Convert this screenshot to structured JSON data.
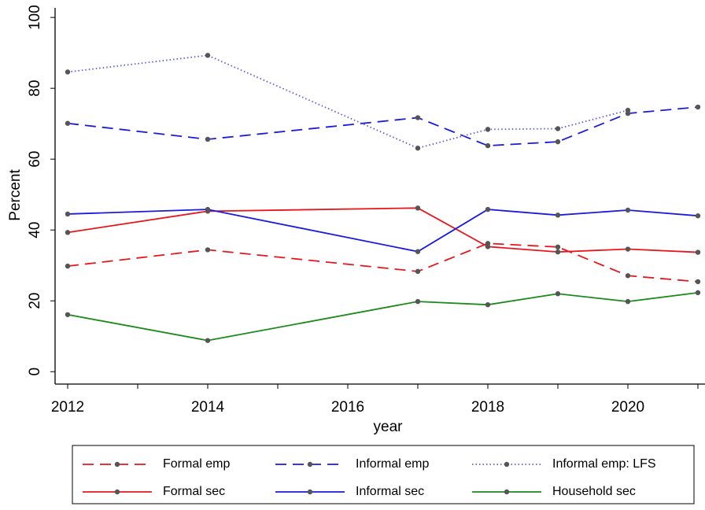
{
  "chart_data": {
    "type": "line",
    "x_label": "year",
    "y_label": "Percent",
    "x": [
      2012,
      2014,
      2017,
      2018,
      2019,
      2020,
      2021
    ],
    "series": [
      {
        "name": "Formal emp",
        "color": "#e8161b",
        "style": "dashed",
        "values": [
          29.8,
          34.4,
          28.3,
          36.2,
          35.2,
          27.1,
          25.4
        ]
      },
      {
        "name": "Informal emp",
        "color": "#1a1ae0",
        "style": "dashed",
        "values": [
          70.1,
          65.6,
          71.7,
          63.8,
          64.9,
          72.9,
          74.7
        ]
      },
      {
        "name": "Informal emp: LFS",
        "color": "#5a5ae6",
        "style": "dotted",
        "values": [
          84.6,
          89.3,
          63.1,
          68.4,
          68.6,
          73.8,
          null
        ]
      },
      {
        "name": "Formal sec",
        "color": "#e8161b",
        "style": "solid",
        "values": [
          39.3,
          45.3,
          46.2,
          35.3,
          33.8,
          34.6,
          33.7
        ]
      },
      {
        "name": "Informal sec",
        "color": "#1a1ae0",
        "style": "solid",
        "values": [
          44.5,
          45.8,
          33.9,
          45.8,
          44.2,
          45.6,
          44.0
        ]
      },
      {
        "name": "Household sec",
        "color": "#1a8a1a",
        "style": "solid",
        "values": [
          16.1,
          8.8,
          19.8,
          18.9,
          22.0,
          19.8,
          22.3
        ]
      }
    ],
    "marker_color": "#555555",
    "xlim": [
      2012,
      2021
    ],
    "xticks": [
      2012,
      2014,
      2016,
      2018,
      2020
    ],
    "xminor_ticks": [
      2013,
      2015,
      2017,
      2019,
      2021
    ],
    "ylim": [
      -3.5,
      102.7
    ],
    "yticks": [
      0,
      20,
      40,
      60,
      80,
      100
    ]
  }
}
